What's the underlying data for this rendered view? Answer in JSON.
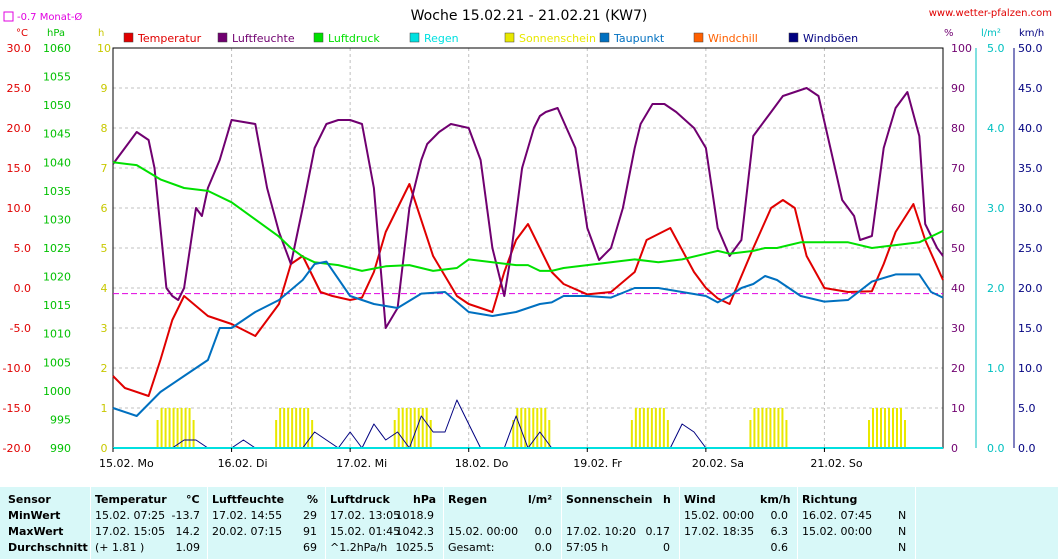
{
  "title": "Woche 15.02.21 - 21.02.21 (KW7)",
  "site": "www.wetter-pfalzen.com",
  "colors": {
    "temperature": "#e00000",
    "humidity": "#700070",
    "pressure": "#00e000",
    "rain": "#00e0e0",
    "sunshine": "#e8e800",
    "dewpoint": "#0070c0",
    "windchill": "#ff6000",
    "gust": "#000080",
    "monthavg": "#e000e0"
  },
  "chart_data": {
    "type": "line",
    "title": "Woche 15.02.21 - 21.02.21 (KW7)",
    "x_labels": [
      "15.02. Mo",
      "16.02. Di",
      "17.02. Mi",
      "18.02. Do",
      "19.02. Fr",
      "20.02. Sa",
      "21.02. So"
    ],
    "legend": [
      "Temperatur",
      "Luftfeuchte",
      "Luftdruck",
      "Regen",
      "Sonnenschein",
      "Taupunkt",
      "Windchill",
      "Windböen"
    ],
    "month_avg_label": "-0.7 Monat-Ø",
    "month_avg_value": -0.7,
    "axes": {
      "temperature": {
        "unit": "°C",
        "range": [
          -20,
          30
        ],
        "ticks": [
          "30.0",
          "25.0",
          "20.0",
          "15.0",
          "10.0",
          "5.0",
          "0.0",
          "-5.0",
          "-10.0",
          "-15.0",
          "-20.0"
        ]
      },
      "pressure": {
        "unit": "hPa",
        "range": [
          990,
          1060
        ],
        "ticks": [
          "1060",
          "1055",
          "1050",
          "1045",
          "1040",
          "1035",
          "1030",
          "1025",
          "1020",
          "1015",
          "1010",
          "1005",
          "1000",
          "995",
          "990"
        ]
      },
      "sunshine": {
        "unit": "h",
        "range": [
          0,
          10
        ],
        "ticks": [
          "10",
          "9",
          "8",
          "7",
          "6",
          "5",
          "4",
          "3",
          "2",
          "1",
          "0"
        ]
      },
      "humidity": {
        "unit": "%",
        "range": [
          0,
          100
        ],
        "ticks": [
          "100",
          "90",
          "80",
          "70",
          "60",
          "50",
          "40",
          "30",
          "20",
          "10",
          "0"
        ]
      },
      "rain": {
        "unit": "l/m²",
        "range": [
          0,
          5
        ],
        "ticks": [
          "5.0",
          "4.0",
          "3.0",
          "2.0",
          "1.0",
          "0.0"
        ]
      },
      "wind": {
        "unit": "km/h",
        "range": [
          0,
          50
        ],
        "ticks": [
          "50.0",
          "45.0",
          "40.0",
          "35.0",
          "30.0",
          "25.0",
          "20.0",
          "15.0",
          "10.0",
          "5.0",
          "0.0"
        ]
      }
    },
    "x_range_days": [
      0,
      7
    ],
    "series": [
      {
        "name": "Temperatur",
        "axis": "temperature",
        "x": [
          0,
          0.1,
          0.3,
          0.4,
          0.5,
          0.6,
          0.8,
          1.0,
          1.2,
          1.4,
          1.5,
          1.6,
          1.75,
          1.85,
          2.0,
          2.1,
          2.2,
          2.3,
          2.5,
          2.7,
          2.9,
          3.0,
          3.1,
          3.2,
          3.3,
          3.4,
          3.5,
          3.7,
          3.8,
          4.0,
          4.2,
          4.4,
          4.5,
          4.7,
          4.9,
          5.0,
          5.1,
          5.2,
          5.4,
          5.55,
          5.65,
          5.75,
          5.85,
          6.0,
          6.2,
          6.4,
          6.5,
          6.6,
          6.75,
          6.85,
          7.0
        ],
        "y": [
          -11,
          -12.5,
          -13.5,
          -9,
          -4,
          -1,
          -3.5,
          -4.5,
          -6,
          -2,
          3,
          4,
          -0.5,
          -1,
          -1.5,
          -1.2,
          2,
          7,
          13,
          4,
          -1,
          -2,
          -2.5,
          -3,
          2,
          6,
          8,
          2,
          0.5,
          -0.8,
          -0.5,
          2,
          6,
          7.5,
          2,
          0,
          -1.3,
          -2,
          5,
          10,
          11,
          10,
          4,
          0,
          -0.5,
          -0.4,
          3,
          7,
          10.5,
          6,
          1
        ]
      },
      {
        "name": "Luftfeuchte",
        "axis": "humidity",
        "x": [
          0,
          0.1,
          0.2,
          0.3,
          0.35,
          0.45,
          0.5,
          0.55,
          0.6,
          0.7,
          0.75,
          0.8,
          0.9,
          1.0,
          1.2,
          1.3,
          1.4,
          1.5,
          1.55,
          1.6,
          1.7,
          1.8,
          1.9,
          2.0,
          2.1,
          2.2,
          2.3,
          2.4,
          2.5,
          2.6,
          2.65,
          2.75,
          2.85,
          3.0,
          3.1,
          3.2,
          3.3,
          3.35,
          3.45,
          3.55,
          3.6,
          3.65,
          3.75,
          3.9,
          4.0,
          4.1,
          4.2,
          4.3,
          4.4,
          4.45,
          4.55,
          4.65,
          4.75,
          4.9,
          5.0,
          5.1,
          5.2,
          5.3,
          5.4,
          5.45,
          5.55,
          5.65,
          5.75,
          5.85,
          5.95,
          6.05,
          6.15,
          6.25,
          6.3,
          6.4,
          6.5,
          6.55,
          6.6,
          6.7,
          6.8,
          6.85,
          6.95,
          7.0
        ],
        "y": [
          71,
          75,
          79,
          77,
          70,
          40,
          38,
          37,
          40,
          60,
          58,
          65,
          72,
          82,
          81,
          65,
          54,
          46,
          53,
          60,
          75,
          81,
          82,
          82,
          81,
          65,
          30,
          35,
          60,
          72,
          76,
          79,
          81,
          80,
          72,
          50,
          38,
          47,
          70,
          80,
          83,
          84,
          85,
          75,
          55,
          47,
          50,
          60,
          75,
          81,
          86,
          86,
          84,
          80,
          75,
          55,
          48,
          52,
          78,
          80,
          84,
          88,
          89,
          90,
          88,
          75,
          62,
          58,
          52,
          53,
          75,
          80,
          85,
          89,
          78,
          56,
          50,
          48
        ]
      },
      {
        "name": "Luftdruck",
        "axis": "pressure",
        "x": [
          0,
          0.2,
          0.4,
          0.6,
          0.8,
          1.0,
          1.2,
          1.4,
          1.5,
          1.6,
          1.7,
          1.9,
          2.1,
          2.3,
          2.5,
          2.7,
          2.9,
          3.0,
          3.2,
          3.4,
          3.5,
          3.6,
          3.7,
          3.8,
          4.0,
          4.2,
          4.4,
          4.6,
          4.8,
          5.0,
          5.1,
          5.2,
          5.4,
          5.5,
          5.6,
          5.7,
          5.8,
          6.0,
          6.2,
          6.4,
          6.6,
          6.8,
          7.0
        ],
        "y": [
          1040,
          1039.5,
          1037,
          1035.5,
          1035,
          1033,
          1030,
          1027,
          1025,
          1023.5,
          1022.5,
          1022,
          1021,
          1021.8,
          1022,
          1021,
          1021.5,
          1023,
          1022.5,
          1022,
          1022,
          1021,
          1021,
          1021.5,
          1022,
          1022.5,
          1023,
          1022.5,
          1023,
          1024,
          1024.5,
          1024,
          1024.5,
          1025,
          1025,
          1025.5,
          1026,
          1026,
          1026,
          1025,
          1025.5,
          1026,
          1028
        ]
      },
      {
        "name": "Taupunkt",
        "axis": "temperature",
        "x": [
          0,
          0.2,
          0.4,
          0.6,
          0.8,
          0.9,
          1.0,
          1.1,
          1.2,
          1.4,
          1.6,
          1.7,
          1.8,
          2.0,
          2.2,
          2.4,
          2.6,
          2.8,
          3.0,
          3.2,
          3.4,
          3.6,
          3.7,
          3.8,
          4.0,
          4.2,
          4.4,
          4.6,
          4.8,
          5.0,
          5.1,
          5.2,
          5.3,
          5.4,
          5.5,
          5.6,
          5.7,
          5.8,
          6.0,
          6.2,
          6.4,
          6.6,
          6.8,
          6.9,
          7.0
        ],
        "y": [
          -15,
          -16,
          -13,
          -11,
          -9,
          -5,
          -5,
          -4,
          -3,
          -1.5,
          1,
          3,
          3.3,
          -1,
          -2,
          -2.5,
          -0.7,
          -0.5,
          -3,
          -3.5,
          -3,
          -2,
          -1.8,
          -1,
          -1,
          -1.2,
          0,
          0,
          -0.5,
          -1,
          -1.8,
          -1,
          0,
          0.5,
          1.5,
          1,
          0,
          -1,
          -1.7,
          -1.5,
          0.8,
          1.7,
          1.7,
          -0.5,
          -1.2
        ]
      },
      {
        "name": "Windböen",
        "axis": "wind",
        "x": [
          0,
          0.5,
          0.6,
          0.7,
          0.8,
          0.9,
          1.0,
          1.1,
          1.2,
          1.3,
          1.4,
          1.5,
          1.6,
          1.7,
          1.8,
          1.9,
          2.0,
          2.1,
          2.2,
          2.3,
          2.4,
          2.5,
          2.6,
          2.7,
          2.8,
          2.9,
          3.0,
          3.1,
          3.2,
          3.3,
          3.4,
          3.5,
          3.6,
          3.7,
          3.8,
          3.9,
          4.0,
          4.1,
          4.2,
          4.3,
          4.4,
          4.5,
          4.6,
          4.7,
          4.8,
          4.9,
          5.0,
          5.1,
          5.2,
          5.3,
          5.4,
          5.5,
          5.6,
          5.7,
          5.8,
          5.9,
          6.0,
          6.1,
          6.2,
          6.3,
          6.4,
          6.5,
          6.6,
          6.7,
          6.8,
          6.9,
          7.0
        ],
        "y": [
          0,
          0,
          1,
          1,
          0,
          0,
          0,
          1,
          0,
          0,
          0,
          0,
          0,
          2,
          1,
          0,
          2,
          0,
          3,
          1,
          2,
          0,
          4,
          2,
          2,
          6,
          3,
          0,
          0,
          0,
          4,
          0,
          2,
          0,
          0,
          0,
          0,
          0,
          0,
          0,
          0,
          0,
          0,
          0,
          3,
          2,
          0,
          0,
          0,
          0,
          0,
          0,
          0,
          0,
          0,
          0,
          0,
          0,
          0,
          0,
          0,
          0,
          0,
          0,
          0,
          0,
          0
        ]
      }
    ],
    "sunshine_days": [
      0.3,
      1.3,
      2.3,
      3.3,
      4.3,
      5.3,
      6.3
    ]
  },
  "stats": {
    "headers": {
      "sensor": "Sensor",
      "temp": "Temperatur",
      "temp_unit": "°C",
      "hum": "Luftfeuchte",
      "hum_unit": "%",
      "press": "Luftdruck",
      "press_unit": "hPa",
      "rain": "Regen",
      "rain_unit": "l/m²",
      "sun": "Sonnenschein",
      "sun_unit": "h",
      "wind": "Wind",
      "wind_unit": "km/h",
      "dir": "Richtung"
    },
    "rows": [
      {
        "label": "MinWert",
        "temp_time": "15.02.  07:25",
        "temp_val": "-13.7",
        "hum_time": "17.02.  14:55",
        "hum_val": "29",
        "press_time": "17.02.  13:05",
        "press_val": "1018.9",
        "rain_time": "",
        "rain_val": "",
        "sun_time": "",
        "sun_val": "",
        "wind_time": "15.02.  00:00",
        "wind_val": "0.0",
        "dir_time": "16.02.  07:45",
        "dir_val": "N"
      },
      {
        "label": "MaxWert",
        "temp_time": "17.02.  15:05",
        "temp_val": "14.2",
        "hum_time": "20.02.  07:15",
        "hum_val": "91",
        "press_time": "15.02.  01:45",
        "press_val": "1042.3",
        "rain_time": "15.02.  00:00",
        "rain_val": "0.0",
        "sun_time": "17.02.  10:20",
        "sun_val": "0.17",
        "wind_time": "17.02.  18:35",
        "wind_val": "6.3",
        "dir_time": "15.02.  00:00",
        "dir_val": "N"
      },
      {
        "label": "Durchschnitt",
        "temp_time": "(+ 1.81 )",
        "temp_val": "1.09",
        "hum_time": "",
        "hum_val": "69",
        "press_time": "^1.2hPa/h",
        "press_val": "1025.5",
        "rain_time": "Gesamt:",
        "rain_val": "0.0",
        "sun_time": "57:05 h",
        "sun_val": "0",
        "wind_time": "",
        "wind_val": "0.6",
        "dir_time": "",
        "dir_val": "N"
      }
    ]
  }
}
